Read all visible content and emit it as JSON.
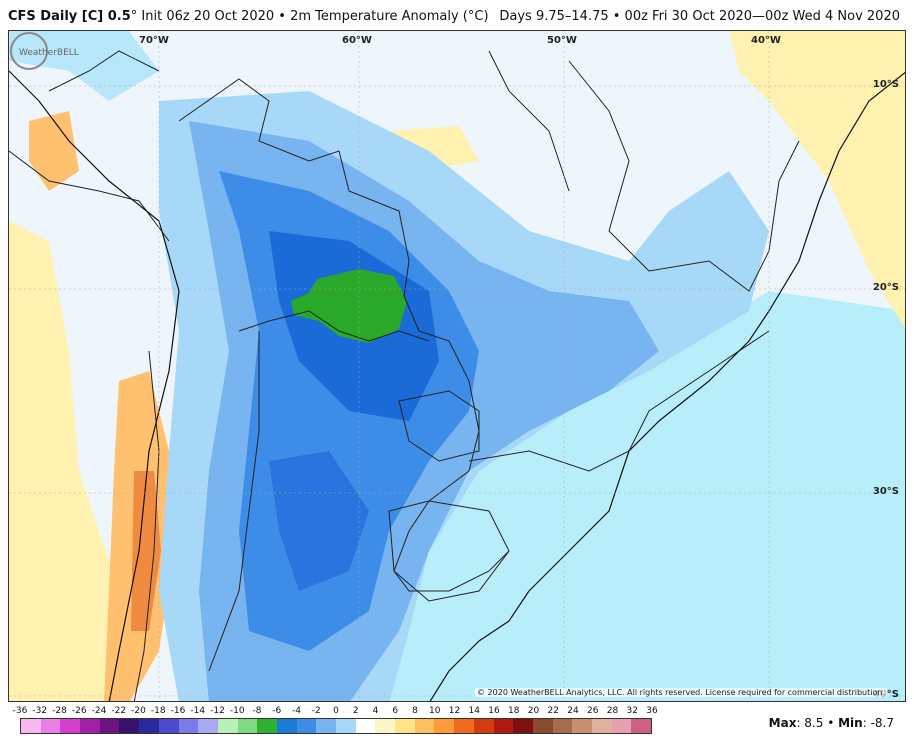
{
  "header": {
    "model": "CFS Daily [C] 0.5",
    "init": "° Init 06z 20 Oct 2020 • 2m Temperature Anomaly (°C)",
    "valid": "Days 9.75–14.75 • 00z Fri 30 Oct 2020—00z Wed 4 Nov 2020"
  },
  "map": {
    "lon_labels": [
      "70°W",
      "60°W",
      "50°W",
      "40°W"
    ],
    "lat_labels": [
      "10°S",
      "20°S",
      "30°S",
      "40°S"
    ],
    "credit": "© 2020 WeatherBELL Analytics, LLC. All rights reserved. License required for commercial distribution.",
    "logo_text": "WeatherBELL"
  },
  "colorbar": {
    "labels": [
      "-36",
      "-32",
      "-28",
      "-26",
      "-24",
      "-22",
      "-20",
      "-18",
      "-16",
      "-14",
      "-12",
      "-10",
      "-8",
      "-6",
      "-4",
      "-2",
      "0",
      "2",
      "4",
      "6",
      "8",
      "10",
      "12",
      "14",
      "16",
      "18",
      "20",
      "22",
      "24",
      "26",
      "28",
      "32",
      "36"
    ],
    "colors": [
      "#f7b8f0",
      "#ea80e4",
      "#d43fd0",
      "#a020a8",
      "#6c1480",
      "#3a1070",
      "#2a2aa0",
      "#4a4ad0",
      "#7a7ae8",
      "#a8a8f0",
      "#b8f0b8",
      "#80d880",
      "#30b030",
      "#1a7ad8",
      "#3c8ce8",
      "#78b4f0",
      "#a8d8f8",
      "#ffffff",
      "#fff6c8",
      "#ffe48a",
      "#ffc060",
      "#ff9a3a",
      "#f06a20",
      "#d83a10",
      "#b01a10",
      "#801010",
      "#8a4a30",
      "#a86a50",
      "#c89070",
      "#e0b0a0",
      "#e8a0b0",
      "#d06080"
    ]
  },
  "stats": {
    "max_label": "Max",
    "max_value": ": 8.5",
    "sep": " • ",
    "min_label": "Min",
    "min_value": ": -8.7"
  }
}
